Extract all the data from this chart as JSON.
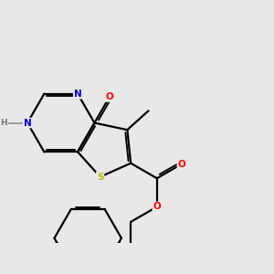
{
  "background_color": "#e8e8e8",
  "bond_color": "#000000",
  "N_color": "#0000cc",
  "O_color": "#ff0000",
  "S_color": "#bbbb00",
  "H_color": "#777777",
  "bond_width": 1.6,
  "figsize": [
    3.0,
    3.0
  ],
  "dpi": 100,
  "xlim": [
    0.0,
    7.5
  ],
  "ylim": [
    0.0,
    6.0
  ]
}
